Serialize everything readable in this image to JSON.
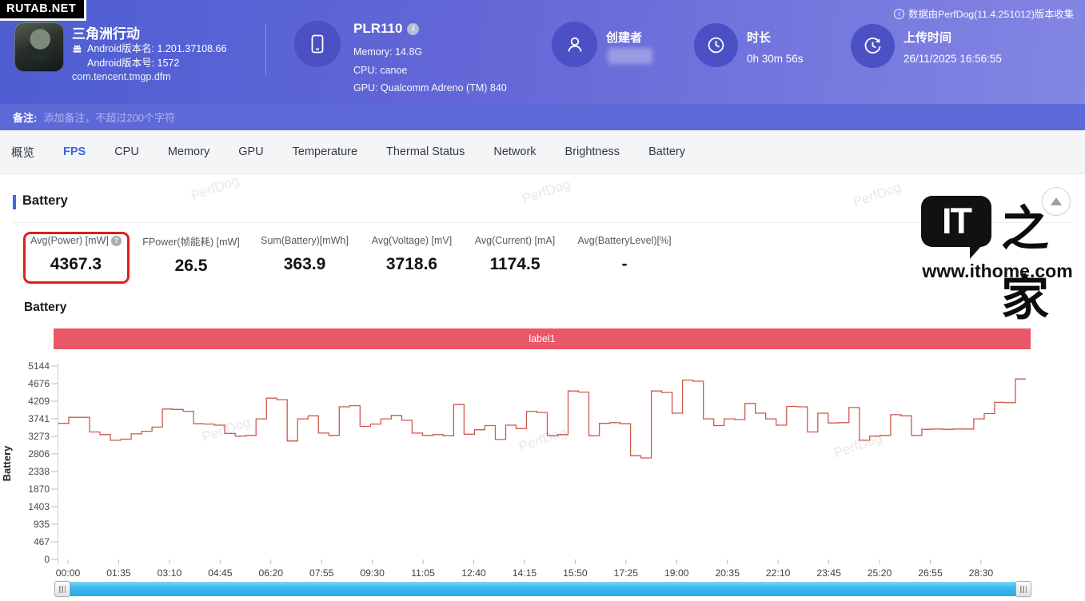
{
  "badge": {
    "text": "RUTAB.NET"
  },
  "header": {
    "app": {
      "name": "三角洲行动",
      "version_name": "Android版本名: 1.201.37108.66",
      "version_code": "Android版本号: 1572",
      "package": "com.tencent.tmgp.dfm"
    },
    "device": {
      "model": "PLR110",
      "memory": "Memory: 14.8G",
      "cpu": "CPU: canoe",
      "gpu": "GPU: Qualcomm Adreno (TM) 840"
    },
    "creator": {
      "label": "创建者"
    },
    "duration": {
      "label": "时长",
      "value": "0h 30m 56s"
    },
    "upload": {
      "label": "上传时间",
      "value": "26/11/2025 16:56:55"
    },
    "collect_note": "数据由PerfDog(11.4.251012)版本收集"
  },
  "notes_bar": {
    "label": "备注:",
    "placeholder": "添加备注，不超过200个字符"
  },
  "tabs": [
    {
      "label": "概览",
      "active": false
    },
    {
      "label": "FPS",
      "active": true
    },
    {
      "label": "CPU",
      "active": false
    },
    {
      "label": "Memory",
      "active": false
    },
    {
      "label": "GPU",
      "active": false
    },
    {
      "label": "Temperature",
      "active": false
    },
    {
      "label": "Thermal Status",
      "active": false
    },
    {
      "label": "Network",
      "active": false
    },
    {
      "label": "Brightness",
      "active": false
    },
    {
      "label": "Battery",
      "active": false
    }
  ],
  "section": {
    "title": "Battery"
  },
  "stats": [
    {
      "label": "Avg(Power) [mW]",
      "value": "4367.3",
      "highlighted": true,
      "has_help_icon": true
    },
    {
      "label": "FPower(帧能耗) [mW]",
      "value": "26.5"
    },
    {
      "label": "Sum(Battery)[mWh]",
      "value": "363.9"
    },
    {
      "label": "Avg(Voltage) [mV]",
      "value": "3718.6"
    },
    {
      "label": "Avg(Current) [mA]",
      "value": "1174.5"
    },
    {
      "label": "Avg(BatteryLevel)[%]",
      "value": "-"
    }
  ],
  "watermark": {
    "logo_text": "IT",
    "logo_cn": "之家",
    "site": "www.ithome.com",
    "tile_text": "PerfDog"
  },
  "chart_data": {
    "type": "line",
    "title": "Battery",
    "series_label": "label1",
    "ylabel": "Battery",
    "ylim": [
      0,
      5144
    ],
    "yticks": [
      0,
      467,
      935,
      1403,
      1870,
      2338,
      2806,
      3273,
      3741,
      4209,
      4676,
      5144
    ],
    "xticks": [
      "00:00",
      "01:35",
      "03:10",
      "04:45",
      "06:20",
      "07:55",
      "09:30",
      "11:05",
      "12:40",
      "14:15",
      "15:50",
      "17:25",
      "19:00",
      "20:35",
      "22:10",
      "23:45",
      "25:20",
      "26:55",
      "28:30"
    ],
    "unit": "mW",
    "line_color": "#cf584b",
    "banner_color": "#ea5769",
    "grid": false,
    "legend_position": "top",
    "values": [
      3620,
      3780,
      3780,
      3390,
      3320,
      3170,
      3200,
      3340,
      3410,
      3520,
      4000,
      3990,
      3940,
      3610,
      3600,
      3570,
      3350,
      3280,
      3300,
      3740,
      4290,
      4250,
      3150,
      3740,
      3820,
      3360,
      3300,
      4060,
      4090,
      3540,
      3600,
      3740,
      3830,
      3700,
      3360,
      3300,
      3320,
      3290,
      4120,
      3330,
      3450,
      3560,
      3190,
      3570,
      3480,
      3940,
      3910,
      3290,
      3320,
      4480,
      4450,
      3290,
      3620,
      3640,
      3610,
      2760,
      2700,
      4480,
      4440,
      3890,
      4770,
      4740,
      3740,
      3560,
      3740,
      3720,
      4150,
      3890,
      3740,
      3570,
      4070,
      4060,
      3390,
      3890,
      3630,
      3640,
      4040,
      3170,
      3280,
      3300,
      3850,
      3820,
      3300,
      3460,
      3470,
      3460,
      3470,
      3470,
      3740,
      3880,
      4180,
      4170,
      4800
    ]
  }
}
